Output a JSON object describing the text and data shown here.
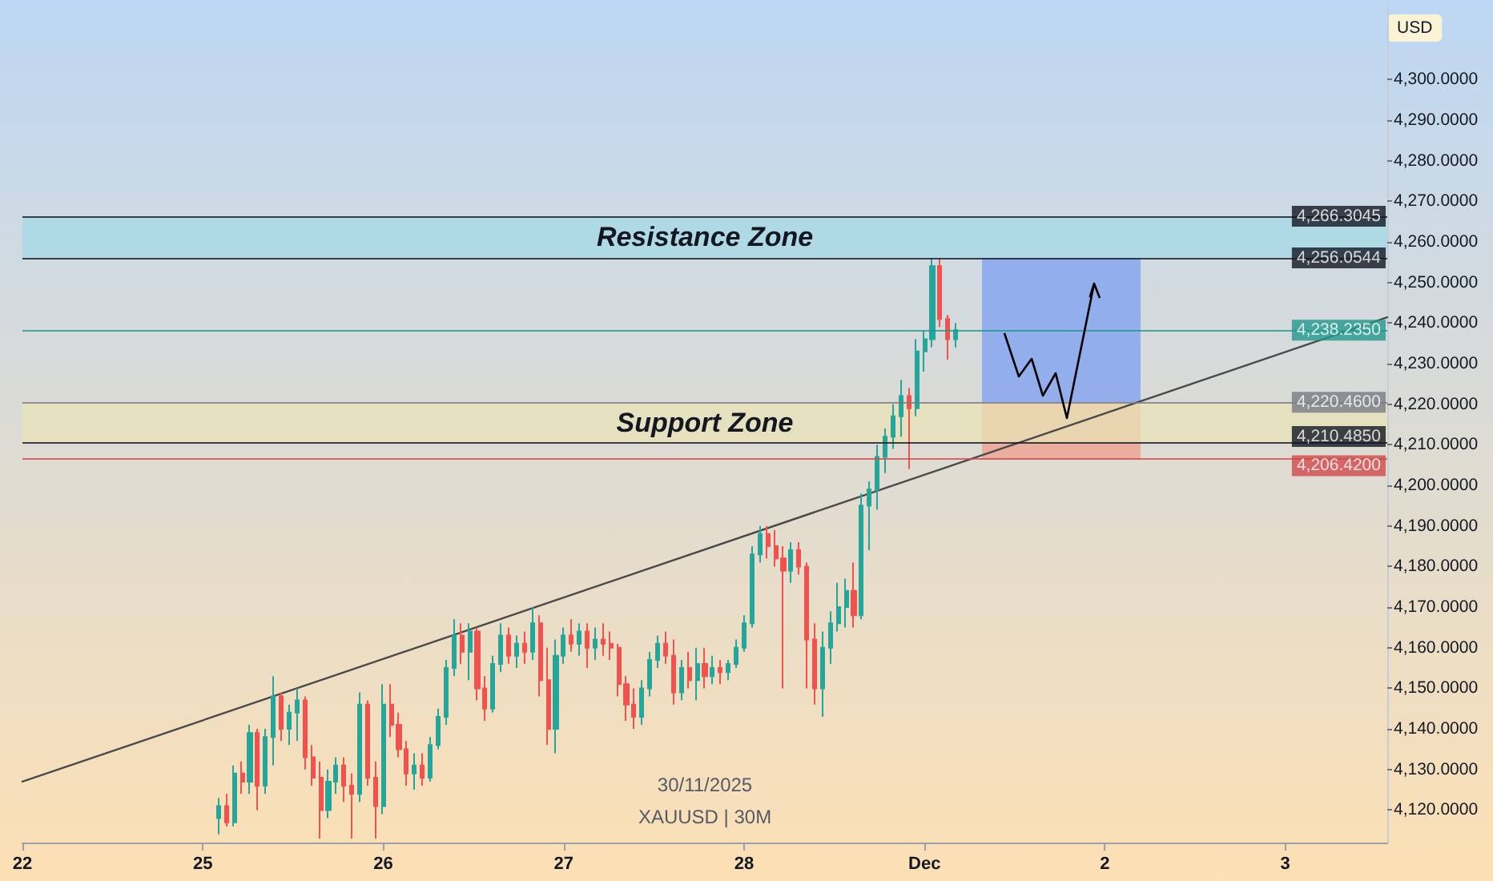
{
  "chart_data": {
    "type": "candlestick",
    "ylabel": "USD",
    "annotations": [
      "30/11/2025",
      "XAUUSD | 30M"
    ],
    "categories": [
      "22",
      null,
      null,
      null,
      null,
      null,
      null,
      null,
      null,
      null,
      null,
      null,
      null,
      null,
      null,
      null,
      null,
      null,
      null,
      null,
      null,
      null,
      null,
      "25",
      null,
      null,
      null,
      null,
      null,
      null,
      null,
      null,
      null,
      null,
      null,
      null,
      null,
      null,
      null,
      null,
      null,
      null,
      null,
      null,
      null,
      null,
      "26",
      null,
      null,
      null,
      null,
      null,
      null,
      null,
      null,
      null,
      null,
      null,
      null,
      null,
      null,
      null,
      null,
      null,
      null,
      null,
      null,
      null,
      null,
      "27",
      null,
      null,
      null,
      null,
      null,
      null,
      null,
      null,
      null,
      null,
      null,
      null,
      null,
      null,
      null,
      null,
      null,
      null,
      null,
      null,
      null,
      null,
      "28",
      null,
      null,
      null,
      null,
      null,
      null,
      null,
      null,
      null,
      null,
      null,
      null,
      null,
      null,
      null,
      null,
      null,
      null,
      null,
      null,
      null,
      null,
      "Dec",
      null,
      null,
      null,
      null,
      null,
      null,
      null,
      null,
      null,
      null,
      null,
      null,
      null,
      null,
      null,
      null,
      null,
      null,
      null,
      null,
      null,
      null,
      "2",
      null,
      null,
      null,
      null,
      null,
      null,
      null,
      null,
      null,
      null,
      null,
      null,
      null,
      null,
      null,
      null,
      null,
      null,
      null,
      null,
      null,
      null,
      "3",
      null,
      null,
      null,
      null,
      null,
      null,
      null,
      null,
      null,
      null,
      null,
      null,
      null
    ],
    "ylim": [
      4112,
      4318
    ],
    "yticks": [
      {
        "value": 4120,
        "label": "4,120.0000"
      },
      {
        "value": 4130,
        "label": "4,130.0000"
      },
      {
        "value": 4140,
        "label": "4,140.0000"
      },
      {
        "value": 4150,
        "label": "4,150.0000"
      },
      {
        "value": 4160,
        "label": "4,160.0000"
      },
      {
        "value": 4170,
        "label": "4,170.0000"
      },
      {
        "value": 4180,
        "label": "4,180.0000"
      },
      {
        "value": 4190,
        "label": "4,190.0000"
      },
      {
        "value": 4200,
        "label": "4,200.0000"
      },
      {
        "value": 4210,
        "label": "4,210.0000"
      },
      {
        "value": 4220,
        "label": "4,220.0000"
      },
      {
        "value": 4230,
        "label": "4,230.0000"
      },
      {
        "value": 4240,
        "label": "4,240.0000"
      },
      {
        "value": 4250,
        "label": "4,250.0000"
      },
      {
        "value": 4260,
        "label": "4,260.0000"
      },
      {
        "value": 4270,
        "label": "4,270.0000"
      },
      {
        "value": 4280,
        "label": "4,280.0000"
      },
      {
        "value": 4290,
        "label": "4,290.0000"
      },
      {
        "value": 4300,
        "label": "4,300.0000"
      }
    ],
    "bands": [
      {
        "axis": "y",
        "from": 4256.0544,
        "to": 4266.3045,
        "label": "Resistance Zone",
        "color": "#a3d8e5"
      },
      {
        "axis": "y",
        "from": 4210.485,
        "to": 4220.46,
        "label": "Support Zone",
        "color": "#e8e2b6"
      }
    ],
    "ref_lines": [
      {
        "axis": "y",
        "value": 4266.3045,
        "label": "4,266.3045",
        "color": "#131722"
      },
      {
        "axis": "y",
        "value": 4256.0544,
        "label": "4,256.0544",
        "color": "#131722"
      },
      {
        "axis": "y",
        "value": 4238.235,
        "label": "4,238.2350",
        "color": "#22998e"
      },
      {
        "axis": "y",
        "value": 4220.46,
        "label": "4,220.4600",
        "color": "#787b86"
      },
      {
        "axis": "y",
        "value": 4210.485,
        "label": "4,210.4850",
        "color": "#131722"
      },
      {
        "axis": "y",
        "value": 4206.42,
        "label": "4,206.4200",
        "color": "#d14a4a"
      }
    ],
    "series": [
      {
        "type": "line",
        "color": "#4a4a4a",
        "values": [
          4127,
          null,
          null,
          null,
          null,
          null,
          null,
          null,
          null,
          null,
          null,
          null,
          null,
          null,
          null,
          null,
          null,
          null,
          null,
          null,
          null,
          null,
          null,
          null,
          null,
          null,
          null,
          null,
          null,
          null,
          null,
          null,
          null,
          null,
          null,
          null,
          null,
          null,
          null,
          null,
          null,
          null,
          null,
          null,
          null,
          null,
          null,
          null,
          null,
          null,
          null,
          null,
          null,
          null,
          null,
          null,
          null,
          null,
          null,
          null,
          null,
          null,
          null,
          null,
          null,
          null,
          null,
          null,
          null,
          null,
          null,
          null,
          null,
          null,
          null,
          null,
          null,
          null,
          null,
          null,
          null,
          null,
          null,
          null,
          null,
          null,
          null,
          null,
          null,
          null,
          null,
          null,
          null,
          null,
          null,
          null,
          null,
          null,
          null,
          null,
          null,
          null,
          null,
          null,
          null,
          null,
          null,
          null,
          null,
          null,
          null,
          null,
          null,
          null,
          null,
          null,
          null,
          null,
          null,
          null,
          null,
          null,
          null,
          null,
          null,
          null,
          null,
          null,
          null,
          null,
          null,
          null,
          null,
          null,
          null,
          null,
          null,
          null,
          null,
          null,
          null,
          null,
          null,
          null,
          null,
          null,
          null,
          null,
          null,
          null,
          null,
          null,
          null,
          null,
          null,
          null,
          null,
          null,
          null,
          null,
          null,
          null,
          null,
          null,
          null,
          null,
          null,
          null,
          null,
          null,
          null,
          null,
          null,
          null,
          4241.4
        ]
      },
      {
        "colors": [
          null,
          null,
          null,
          null,
          null,
          null,
          null,
          null,
          null,
          null,
          null,
          null,
          null,
          null,
          null,
          null,
          null,
          null,
          null,
          null,
          null,
          null,
          null,
          null,
          null,
          "#26a69a",
          "#ef5350",
          "#26a69a",
          "#ef5350",
          "#26a69a",
          "#ef5350",
          "#26a69a",
          "#26a69a",
          "#ef5350",
          "#26a69a",
          "#26a69a",
          "#ef5350",
          "#ef5350",
          "#ef5350",
          "#26a69a",
          "#26a69a",
          "#ef5350",
          "#ef5350",
          "#26a69a",
          "#ef5350",
          "#ef5350",
          "#26a69a",
          "#ef5350",
          "#ef5350",
          "#ef5350",
          "#26a69a",
          "#ef5350",
          "#26a69a",
          "#26a69a",
          "#26a69a",
          "#26a69a",
          "#ef5350",
          "#26a69a",
          "#ef5350",
          "#ef5350",
          "#26a69a",
          "#26a69a",
          "#ef5350",
          "#26a69a",
          "#ef5350",
          "#26a69a",
          "#ef5350",
          "#ef5350",
          "#26a69a",
          "#26a69a",
          "#ef5350",
          "#26a69a",
          "#ef5350",
          "#26a69a",
          "#ef5350",
          "#ef5350",
          "#ef5350",
          "#ef5350",
          "#ef5350",
          "#26a69a",
          "#26a69a",
          "#26a69a",
          "#ef5350",
          "#ef5350",
          "#26a69a",
          "#ef5350",
          "#26a69a",
          "#ef5350",
          "#26a69a",
          "#ef5350",
          "#26a69a",
          "#26a69a",
          "#26a69a",
          "#26a69a",
          "#26a69a",
          "#ef5350",
          "#ef5350",
          "#ef5350",
          "#26a69a",
          "#ef5350",
          "#ef5350",
          "#ef5350",
          "#26a69a",
          "#26a69a",
          "#26a69a",
          "#26a69a",
          "#ef5350",
          "#26a69a",
          "#26a69a",
          "#26a69a",
          "#26a69a",
          "#26a69a",
          "#26a69a",
          "#ef5350",
          "#26a69a",
          "#26a69a",
          "#26a69a",
          "#ef5350",
          "#ef5350",
          "#26a69a",
          null,
          null,
          null,
          null,
          null,
          null,
          null,
          null,
          null,
          null,
          null,
          null,
          null,
          null,
          null,
          null,
          null,
          null,
          null,
          null,
          null,
          null,
          null,
          null,
          null,
          null,
          null,
          null,
          null,
          null,
          null,
          null,
          null,
          null,
          null,
          null,
          null,
          null,
          null,
          null,
          null,
          null,
          null,
          null,
          null,
          null,
          null,
          null,
          null,
          null,
          null,
          null,
          null,
          null,
          null
        ],
        "ohlc": [
          null,
          null,
          null,
          null,
          null,
          null,
          null,
          null,
          null,
          null,
          null,
          null,
          null,
          null,
          null,
          null,
          null,
          null,
          null,
          null,
          null,
          null,
          null,
          null,
          null,
          [
            4118,
            4123,
            4114,
            4121
          ],
          [
            4121,
            4124,
            4116,
            4117
          ],
          [
            4117,
            4131,
            4116,
            4129
          ],
          [
            4129,
            4132,
            4124,
            4127
          ],
          [
            4127,
            4141,
            4124,
            4139
          ],
          [
            4139,
            4140,
            4120,
            4126
          ],
          [
            4126,
            4140,
            4124,
            4138
          ],
          [
            4138,
            4153,
            4131,
            4148
          ],
          [
            4148,
            4149,
            4137,
            4140
          ],
          [
            4140,
            4146,
            4136,
            4144
          ],
          [
            4144,
            4150,
            4137,
            4147
          ],
          [
            4147,
            4148,
            4130,
            4133
          ],
          [
            4133,
            4136,
            4126,
            4128
          ],
          [
            4128,
            4132,
            4113,
            4120
          ],
          [
            4120,
            4130,
            4118,
            4127
          ],
          [
            4127,
            4133,
            4124,
            4131
          ],
          [
            4131,
            4133,
            4122,
            4126
          ],
          [
            4126,
            4129,
            4113,
            4124
          ],
          [
            4124,
            4149,
            4122,
            4146
          ],
          [
            4146,
            4147,
            4126,
            4128
          ],
          [
            4128,
            4132,
            4113,
            4121
          ],
          [
            4121,
            4151,
            4119,
            4146
          ],
          [
            4146,
            4151,
            4138,
            4141
          ],
          [
            4141,
            4144,
            4133,
            4135
          ],
          [
            4135,
            4137,
            4126,
            4129
          ],
          [
            4129,
            4134,
            4125,
            4131
          ],
          [
            4131,
            4134,
            4126,
            4128
          ],
          [
            4128,
            4138,
            4127,
            4136
          ],
          [
            4136,
            4145,
            4135,
            4143
          ],
          [
            4143,
            4157,
            4141,
            4155
          ],
          [
            4155,
            4167,
            4153,
            4163
          ],
          [
            4163,
            4166,
            4156,
            4159
          ],
          [
            4159,
            4166,
            4152,
            4164
          ],
          [
            4164,
            4165,
            4147,
            4150
          ],
          [
            4150,
            4153,
            4142,
            4145
          ],
          [
            4145,
            4158,
            4144,
            4156
          ],
          [
            4156,
            4166,
            4154,
            4163
          ],
          [
            4163,
            4165,
            4156,
            4158
          ],
          [
            4158,
            4163,
            4155,
            4161
          ],
          [
            4161,
            4164,
            4156,
            4159
          ],
          [
            4159,
            4170,
            4157,
            4166
          ],
          [
            4166,
            4168,
            4148,
            4152
          ],
          [
            4152,
            4160,
            4136,
            4140
          ],
          [
            4140,
            4162,
            4134,
            4158
          ],
          [
            4158,
            4165,
            4156,
            4163
          ],
          [
            4163,
            4167,
            4159,
            4161
          ],
          [
            4161,
            4166,
            4158,
            4164
          ],
          [
            4164,
            4166,
            4155,
            4160
          ],
          [
            4160,
            4165,
            4157,
            4162
          ],
          [
            4162,
            4166,
            4158,
            4161
          ],
          [
            4161,
            4164,
            4157,
            4160
          ],
          [
            4160,
            4161,
            4148,
            4151
          ],
          [
            4151,
            4153,
            4142,
            4146
          ],
          [
            4146,
            4150,
            4140,
            4143
          ],
          [
            4143,
            4152,
            4141,
            4150
          ],
          [
            4150,
            4159,
            4148,
            4157
          ],
          [
            4157,
            4163,
            4155,
            4161
          ],
          [
            4161,
            4164,
            4156,
            4158
          ],
          [
            4158,
            4162,
            4146,
            4149
          ],
          [
            4149,
            4157,
            4147,
            4155
          ],
          [
            4155,
            4159,
            4150,
            4152
          ],
          [
            4152,
            4160,
            4147,
            4156
          ],
          [
            4156,
            4160,
            4150,
            4153
          ],
          [
            4153,
            4158,
            4151,
            4155
          ],
          [
            4155,
            4157,
            4151,
            4154
          ],
          [
            4154,
            4157,
            4152,
            4156
          ],
          [
            4156,
            4162,
            4155,
            4160
          ],
          [
            4160,
            4168,
            4159,
            4166
          ],
          [
            4166,
            4185,
            4165,
            4183
          ],
          [
            4183,
            4190,
            4181,
            4188
          ],
          [
            4188,
            4190,
            4182,
            4185
          ],
          [
            4185,
            4189,
            4180,
            4182
          ],
          [
            4182,
            4185,
            4150,
            4179
          ],
          [
            4179,
            4186,
            4176,
            4184
          ],
          [
            4184,
            4186,
            4178,
            4180
          ],
          [
            4180,
            4181,
            4150,
            4162
          ],
          [
            4162,
            4166,
            4146,
            4150
          ],
          [
            4150,
            4164,
            4143,
            4160
          ],
          [
            4160,
            4169,
            4156,
            4166
          ],
          [
            4166,
            4176,
            4164,
            4170
          ],
          [
            4170,
            4177,
            4165,
            4174
          ],
          [
            4174,
            4181,
            4165,
            4168
          ],
          [
            4168,
            4198,
            4167,
            4195
          ],
          [
            4195,
            4201,
            4184,
            4199
          ],
          [
            4199,
            4210,
            4194,
            4207
          ],
          [
            4207,
            4214,
            4203,
            4212
          ],
          [
            4212,
            4220,
            4209,
            4217
          ],
          [
            4217,
            4226,
            4212,
            4222
          ],
          [
            4222,
            4224,
            4204,
            4219
          ],
          [
            4219,
            4236,
            4217,
            4233
          ],
          [
            4233,
            4238,
            4228,
            4236
          ],
          [
            4236,
            4256,
            4234,
            4254
          ],
          [
            4254,
            4256,
            4239,
            4241
          ],
          [
            4241,
            4242,
            4231,
            4236
          ],
          [
            4236,
            4240,
            4234,
            4238.235
          ],
          null,
          null,
          null,
          null,
          null,
          null,
          null,
          null,
          null,
          null,
          null,
          null,
          null,
          null,
          null,
          null,
          null,
          null,
          null,
          null,
          null,
          null,
          null,
          null,
          null,
          null,
          null,
          null,
          null,
          null,
          null,
          null,
          null,
          null,
          null,
          null,
          null,
          null,
          null,
          null,
          null,
          null,
          null,
          null,
          null,
          null,
          null,
          null,
          null,
          null,
          null,
          null,
          null,
          null,
          null
        ]
      }
    ]
  }
}
